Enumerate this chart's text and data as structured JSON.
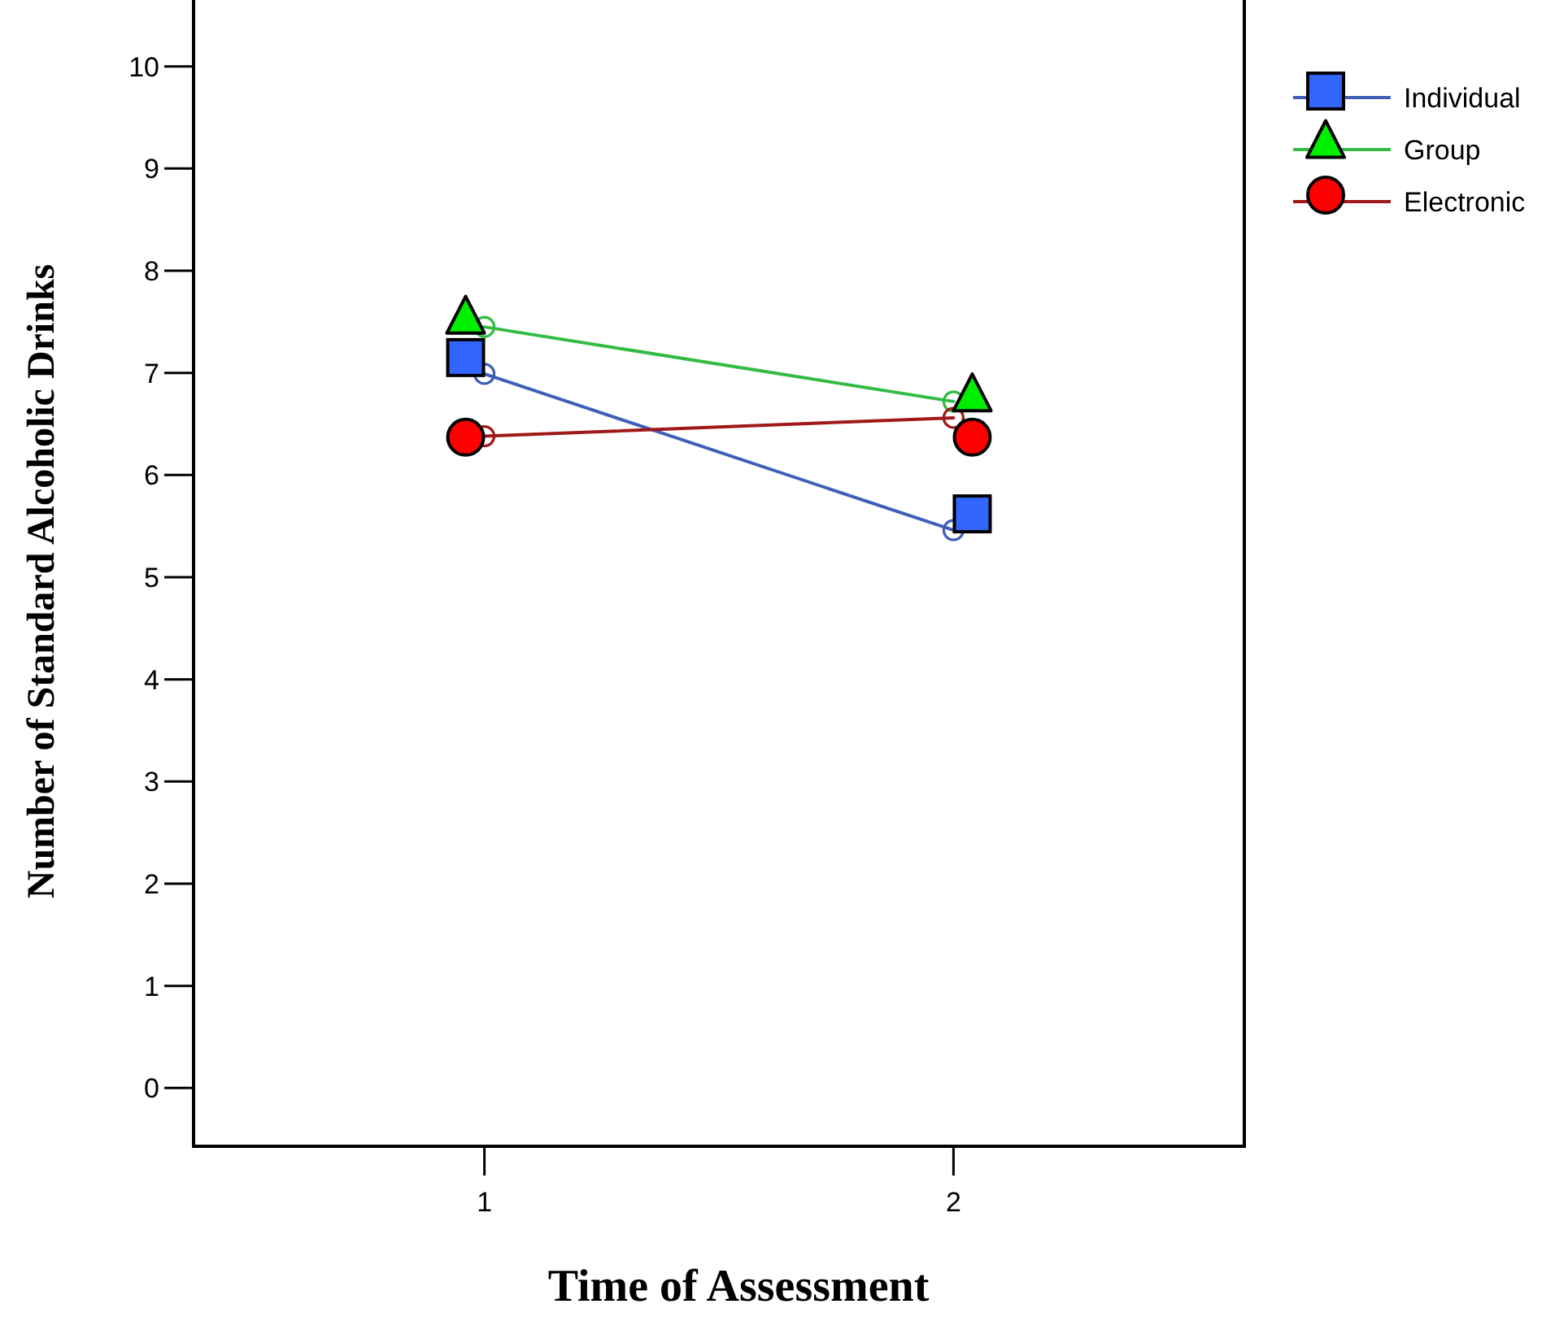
{
  "chart_data": {
    "type": "line",
    "xlabel": "Time of Assessment",
    "ylabel": "Number of Standard Alcoholic Drinks",
    "xlim": [
      0.38,
      2.62
    ],
    "xticks": [
      1,
      2
    ],
    "ylim": [
      -0.57,
      10.65
    ],
    "yticks": [
      0,
      1,
      2,
      3,
      4,
      5,
      6,
      7,
      8,
      9,
      10
    ],
    "grid": false,
    "legend": "top right",
    "series": [
      {
        "marker": "circle",
        "color": "#3f5fb8",
        "x": [
          1,
          2
        ],
        "values": [
          6.99,
          5.46
        ]
      },
      {
        "marker": "circle",
        "color": "#33bb44",
        "x": [
          1,
          2
        ],
        "values": [
          7.45,
          6.72
        ]
      },
      {
        "marker": "circle",
        "color": "#a01818",
        "x": [
          1,
          2
        ],
        "values": [
          6.38,
          6.56
        ]
      },
      {
        "type": "scatter",
        "name": "Individual",
        "marker": "square",
        "color": "#3366ff",
        "x": [
          0.96,
          2.04
        ],
        "values": [
          7.15,
          5.62
        ]
      },
      {
        "type": "scatter",
        "name": "Group",
        "marker": "triangle",
        "color": "#00ee00",
        "x": [
          0.96,
          2.04
        ],
        "values": [
          7.53,
          6.77
        ]
      },
      {
        "type": "scatter",
        "name": "Electronic",
        "marker": "circle",
        "color": "#ff0000",
        "x": [
          0.96,
          2.04
        ],
        "values": [
          6.37,
          6.37
        ]
      }
    ]
  }
}
